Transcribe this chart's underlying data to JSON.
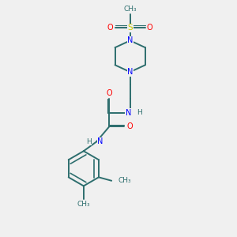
{
  "bg_color": "#f0f0f0",
  "bond_color": "#2d6e6e",
  "N_color": "#0000ff",
  "O_color": "#ff0000",
  "S_color": "#cccc00",
  "figsize": [
    3.0,
    3.0
  ],
  "dpi": 100,
  "xlim": [
    0,
    10
  ],
  "ylim": [
    0,
    10
  ]
}
